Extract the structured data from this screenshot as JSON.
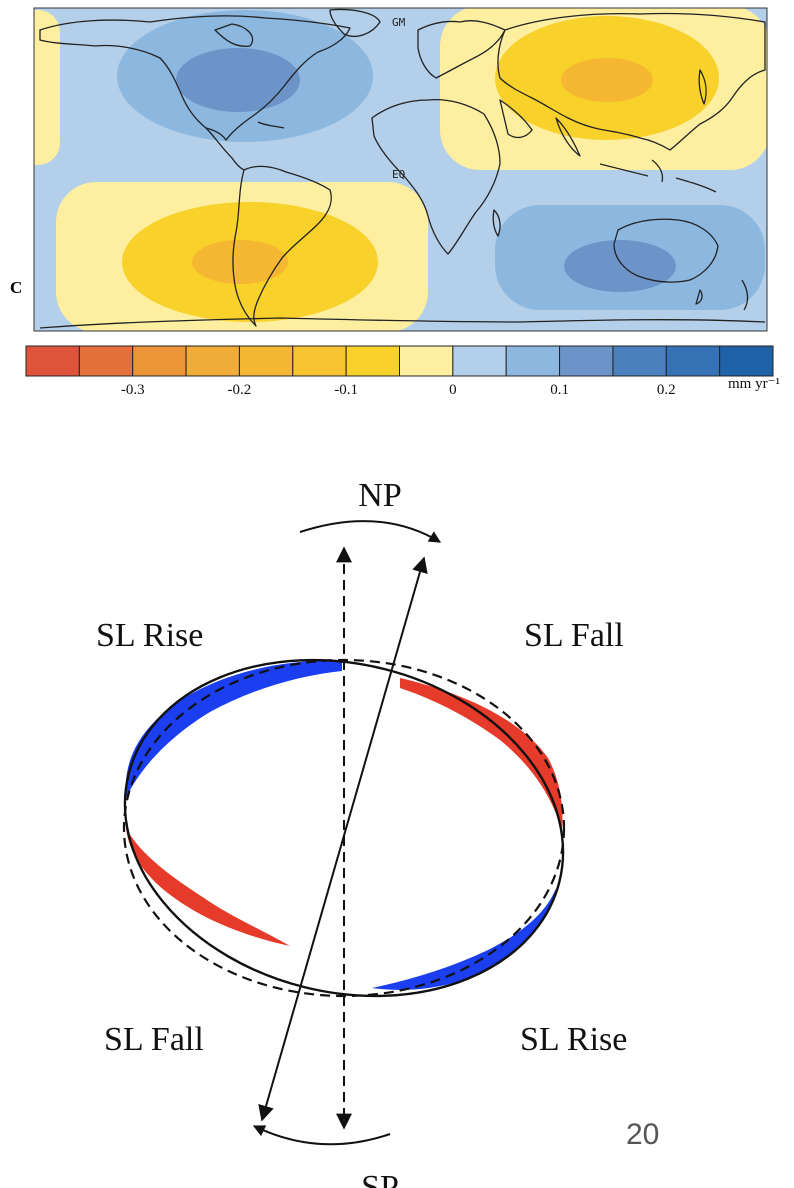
{
  "map": {
    "panel_label": "C",
    "labels": {
      "greenwich": "GM",
      "equator": "EQ"
    }
  },
  "colorbar": {
    "colors": [
      "#e0533b",
      "#e4713b",
      "#ec9538",
      "#f1ab37",
      "#f5b731",
      "#f7c32e",
      "#f8d12b",
      "#fdeea0",
      "#b3cfea",
      "#8cb7df",
      "#6d94c9",
      "#4a80bd",
      "#3673b6",
      "#1f62a8"
    ],
    "tick_labels": [
      "-0.3",
      "-0.2",
      "-0.1",
      "0",
      "0.1",
      "0.2"
    ],
    "unit": "mm yr⁻¹"
  },
  "diagram": {
    "labels": {
      "north_pole": "NP",
      "south_pole": "SP",
      "upper_left": "SL Rise",
      "upper_right": "SL Fall",
      "lower_left": "SL Fall",
      "lower_right": "SL Rise"
    },
    "colors": {
      "rise": "#1a3ef0",
      "fall": "#e63a2a"
    }
  },
  "page_number": "20"
}
